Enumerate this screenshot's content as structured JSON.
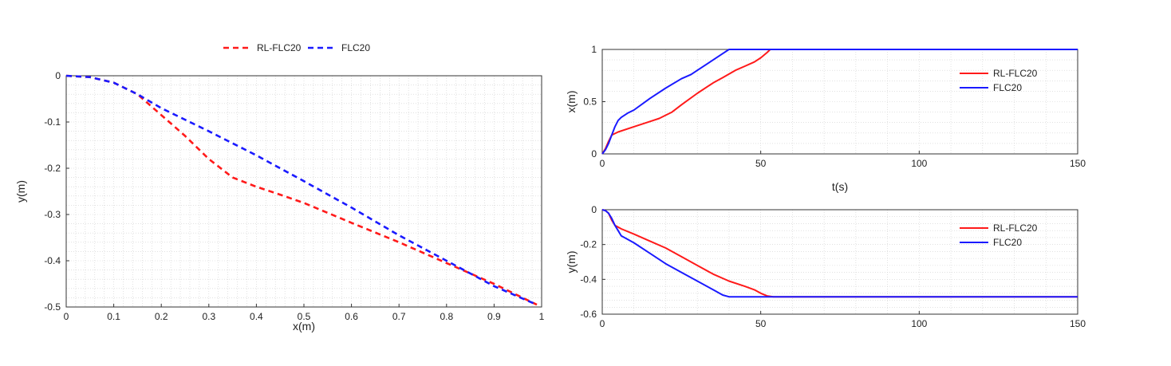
{
  "colors": {
    "rl": "#ff1a1a",
    "flc": "#1a1aff",
    "grid": "#cfcfcf",
    "axis": "#333333"
  },
  "chart_data": [
    {
      "type": "line",
      "xlabel": "x(m)",
      "ylabel": "y(m)",
      "xlim": [
        0,
        1
      ],
      "ylim": [
        -0.5,
        0
      ],
      "xticks": [
        "0",
        "0.1",
        "0.2",
        "0.3",
        "0.4",
        "0.5",
        "0.6",
        "0.7",
        "0.8",
        "0.9",
        "1"
      ],
      "yticks": [
        "0",
        "-0.1",
        "-0.2",
        "-0.3",
        "-0.4",
        "-0.5"
      ],
      "grid": true,
      "legend": "top-center",
      "series": [
        {
          "name": "RL-FLC20",
          "style": "dashed",
          "x": [
            0,
            0.05,
            0.1,
            0.15,
            0.2,
            0.25,
            0.3,
            0.35,
            0.4,
            0.45,
            0.5,
            0.6,
            0.7,
            0.8,
            0.9,
            0.99
          ],
          "y": [
            0,
            -0.003,
            -0.015,
            -0.04,
            -0.085,
            -0.13,
            -0.18,
            -0.22,
            -0.24,
            -0.257,
            -0.275,
            -0.318,
            -0.36,
            -0.405,
            -0.45,
            -0.495
          ]
        },
        {
          "name": "FLC20",
          "style": "dashed",
          "x": [
            0,
            0.05,
            0.1,
            0.15,
            0.2,
            0.3,
            0.4,
            0.5,
            0.6,
            0.7,
            0.8,
            0.9,
            0.99
          ],
          "y": [
            0,
            -0.003,
            -0.015,
            -0.04,
            -0.07,
            -0.12,
            -0.172,
            -0.228,
            -0.285,
            -0.345,
            -0.4,
            -0.455,
            -0.495
          ]
        }
      ]
    },
    {
      "type": "line",
      "xlabel": "t(s)",
      "ylabel": "x(m)",
      "xlim": [
        0,
        150
      ],
      "ylim": [
        0,
        1
      ],
      "xticks": [
        "0",
        "50",
        "100",
        "150"
      ],
      "yticks": [
        "0",
        "0.5",
        "1"
      ],
      "grid": true,
      "legend": "right",
      "series": [
        {
          "name": "RL-FLC20",
          "style": "solid",
          "x": [
            0,
            1,
            2,
            3,
            5,
            10,
            15,
            18,
            20,
            22,
            25,
            30,
            35,
            38,
            42,
            45,
            48,
            50,
            52,
            53,
            150
          ],
          "y": [
            0,
            0.05,
            0.12,
            0.18,
            0.21,
            0.26,
            0.31,
            0.34,
            0.37,
            0.4,
            0.47,
            0.58,
            0.68,
            0.73,
            0.8,
            0.84,
            0.88,
            0.92,
            0.97,
            1,
            1
          ]
        },
        {
          "name": "FLC20",
          "style": "solid",
          "x": [
            0,
            1,
            2,
            3,
            4,
            5,
            6,
            8,
            10,
            15,
            20,
            25,
            28,
            30,
            35,
            38,
            40,
            150
          ],
          "y": [
            0,
            0.04,
            0.1,
            0.18,
            0.26,
            0.32,
            0.35,
            0.39,
            0.42,
            0.53,
            0.63,
            0.72,
            0.76,
            0.8,
            0.9,
            0.96,
            1,
            1
          ]
        }
      ]
    },
    {
      "type": "line",
      "xlabel": "",
      "ylabel": "y(m)",
      "xlim": [
        0,
        150
      ],
      "ylim": [
        -0.6,
        0
      ],
      "xticks": [
        "0",
        "50",
        "100",
        "150"
      ],
      "yticks": [
        "0",
        "-0.2",
        "-0.4",
        "-0.6"
      ],
      "grid": true,
      "legend": "right",
      "series": [
        {
          "name": "RL-FLC20",
          "style": "solid",
          "x": [
            0,
            1,
            2,
            3,
            4,
            6,
            10,
            15,
            20,
            25,
            30,
            35,
            40,
            45,
            48,
            50,
            52,
            54,
            150
          ],
          "y": [
            0,
            -0.005,
            -0.02,
            -0.06,
            -0.09,
            -0.11,
            -0.14,
            -0.18,
            -0.22,
            -0.27,
            -0.32,
            -0.37,
            -0.41,
            -0.44,
            -0.46,
            -0.48,
            -0.495,
            -0.5,
            -0.5
          ]
        },
        {
          "name": "FLC20",
          "style": "solid",
          "x": [
            0,
            1,
            2,
            3,
            4,
            5,
            6,
            8,
            10,
            15,
            20,
            25,
            30,
            35,
            38,
            40,
            150
          ],
          "y": [
            0,
            -0.005,
            -0.02,
            -0.05,
            -0.09,
            -0.12,
            -0.15,
            -0.17,
            -0.19,
            -0.25,
            -0.31,
            -0.36,
            -0.41,
            -0.46,
            -0.49,
            -0.5,
            -0.5
          ]
        }
      ]
    }
  ]
}
